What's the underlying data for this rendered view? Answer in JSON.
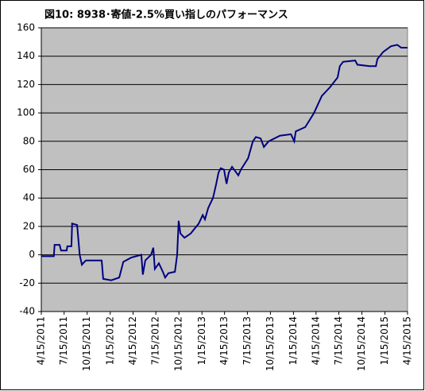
{
  "chart_data": {
    "type": "line",
    "title": "図10: 8938･寄値-2.5%買い指しのパフォーマンス",
    "x": [
      "2011-04-15",
      "2011-06-04",
      "2011-06-07",
      "2011-06-27",
      "2011-07-03",
      "2011-07-25",
      "2011-07-28",
      "2011-08-13",
      "2011-08-16",
      "2011-09-05",
      "2011-09-15",
      "2011-09-24",
      "2011-10-04",
      "2011-10-10",
      "2011-12-12",
      "2011-12-18",
      "2012-01-19",
      "2012-02-20",
      "2012-02-26",
      "2012-03-07",
      "2012-04-07",
      "2012-05-18",
      "2012-05-24",
      "2012-06-03",
      "2012-06-26",
      "2012-07-05",
      "2012-07-11",
      "2012-07-27",
      "2012-08-12",
      "2012-08-21",
      "2012-09-03",
      "2012-09-29",
      "2012-10-08",
      "2012-10-14",
      "2012-10-21",
      "2012-11-06",
      "2012-12-01",
      "2013-01-02",
      "2013-01-18",
      "2013-01-27",
      "2013-02-09",
      "2013-02-28",
      "2013-03-13",
      "2013-03-22",
      "2013-03-31",
      "2013-04-13",
      "2013-04-23",
      "2013-05-02",
      "2013-05-15",
      "2013-06-09",
      "2013-06-19",
      "2013-07-18",
      "2013-08-06",
      "2013-08-18",
      "2013-09-06",
      "2013-09-19",
      "2013-10-08",
      "2013-11-22",
      "2014-01-05",
      "2014-01-18",
      "2014-01-24",
      "2014-03-03",
      "2014-04-07",
      "2014-05-08",
      "2014-06-09",
      "2014-07-10",
      "2014-07-19",
      "2014-08-01",
      "2014-09-18",
      "2014-09-27",
      "2014-11-15",
      "2014-12-10",
      "2014-12-16",
      "2015-01-08",
      "2015-02-08",
      "2015-03-05",
      "2015-03-21",
      "2015-04-15"
    ],
    "series": [
      {
        "color": "#000080",
        "values": [
          -1,
          -1,
          7,
          7,
          3,
          3,
          6,
          6,
          22,
          21,
          0,
          -7,
          -5,
          -4,
          -4,
          -17,
          -18,
          -16,
          -12,
          -5,
          -2,
          0,
          -14,
          -4,
          0,
          5,
          -10,
          -6,
          -12,
          -16,
          -13,
          -12,
          0,
          24,
          15,
          12,
          15,
          22,
          28,
          25,
          33,
          40,
          50,
          58,
          61,
          60,
          50,
          58,
          62,
          56,
          60,
          68,
          80,
          83,
          82,
          76,
          80,
          84,
          85,
          80,
          87,
          90,
          100,
          112,
          118,
          125,
          133,
          136,
          137,
          134,
          133,
          133,
          138,
          143,
          147,
          148,
          146,
          146
        ]
      }
    ],
    "xlim": [
      "2011-04-15",
      "2015-04-15"
    ],
    "xticks": [
      {
        "value": "2011-04-15",
        "label": "4/15/2011"
      },
      {
        "value": "2011-07-15",
        "label": "7/15/2011"
      },
      {
        "value": "2011-10-15",
        "label": "10/15/2011"
      },
      {
        "value": "2012-01-15",
        "label": "1/15/2012"
      },
      {
        "value": "2012-04-15",
        "label": "4/15/2012"
      },
      {
        "value": "2012-07-15",
        "label": "7/15/2012"
      },
      {
        "value": "2012-10-15",
        "label": "10/15/2012"
      },
      {
        "value": "2013-01-15",
        "label": "1/15/2013"
      },
      {
        "value": "2013-04-15",
        "label": "4/15/2013"
      },
      {
        "value": "2013-07-15",
        "label": "7/15/2013"
      },
      {
        "value": "2013-10-15",
        "label": "10/15/2013"
      },
      {
        "value": "2014-01-15",
        "label": "1/15/2014"
      },
      {
        "value": "2014-04-15",
        "label": "4/15/2014"
      },
      {
        "value": "2014-07-15",
        "label": "7/15/2014"
      },
      {
        "value": "2014-10-15",
        "label": "10/15/2014"
      },
      {
        "value": "2015-01-15",
        "label": "1/15/2015"
      },
      {
        "value": "2015-04-15",
        "label": "4/15/2015"
      }
    ],
    "ylim": [
      -40,
      160
    ],
    "yticks": [
      -40,
      -20,
      0,
      20,
      40,
      60,
      80,
      100,
      120,
      140,
      160
    ],
    "grid": true
  }
}
